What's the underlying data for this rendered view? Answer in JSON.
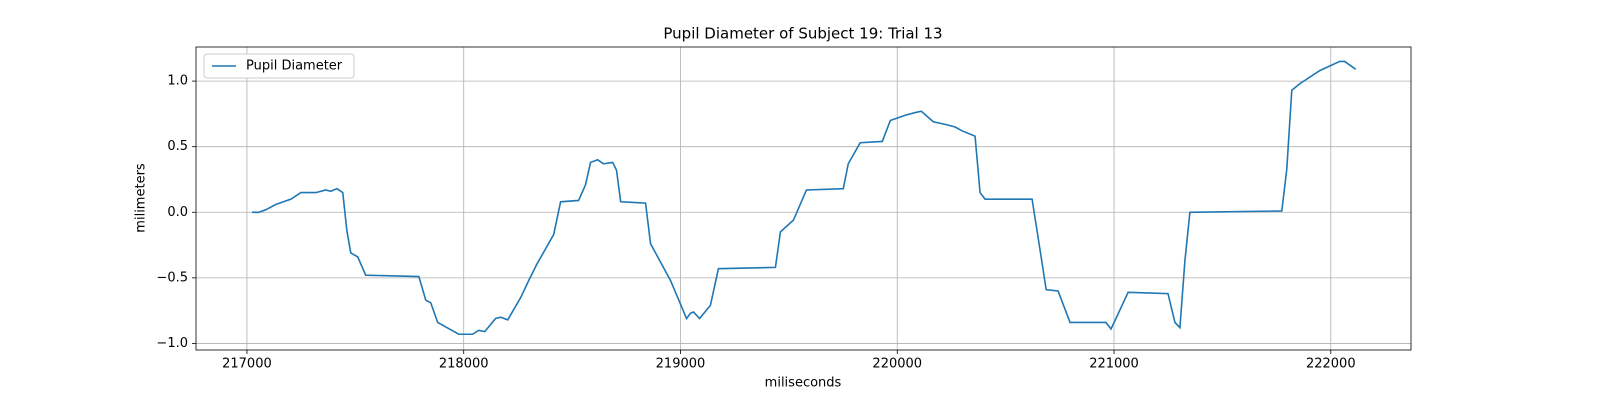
{
  "chart_data": {
    "type": "line",
    "title": "Pupil Diameter of Subject 19: Trial 13",
    "x_label": "miliseconds",
    "y_label": "milimeters",
    "xlim": [
      216765,
      222370
    ],
    "ylim": [
      -1.05,
      1.26
    ],
    "xticks": [
      217000,
      218000,
      219000,
      220000,
      221000,
      222000
    ],
    "yticks": [
      {
        "value": -1.0,
        "label": "−1.0"
      },
      {
        "value": -0.5,
        "label": "−0.5"
      },
      {
        "value": 0.0,
        "label": "0.0"
      },
      {
        "value": 0.5,
        "label": "0.5"
      },
      {
        "value": 1.0,
        "label": "1.0"
      }
    ],
    "grid": true,
    "legend": "upper left",
    "x": [
      217023,
      217055,
      217088,
      217134,
      217203,
      217249,
      217318,
      217364,
      217387,
      217415,
      217442,
      217461,
      217479,
      217511,
      217548,
      217793,
      217825,
      217848,
      217880,
      217977,
      218041,
      218069,
      218097,
      218147,
      218171,
      218203,
      218263,
      218300,
      218336,
      218415,
      218447,
      218530,
      218562,
      218585,
      218618,
      218645,
      218687,
      218705,
      218724,
      218839,
      218862,
      218954,
      219028,
      219046,
      219060,
      219088,
      219138,
      219175,
      219438,
      219461,
      219521,
      219581,
      219751,
      219774,
      219829,
      219931,
      219968,
      220037,
      220083,
      220111,
      220166,
      220221,
      220267,
      220300,
      220359,
      220382,
      220405,
      220622,
      220659,
      220687,
      220742,
      220797,
      220963,
      220986,
      221009,
      221065,
      221249,
      221281,
      221304,
      221327,
      221350,
      221774,
      221797,
      221820,
      221857,
      221949,
      222041,
      222064,
      222115
    ],
    "series": [
      {
        "name": "Pupil Diameter",
        "color": "#1f77b4",
        "values": [
          0.0,
          0.0,
          0.02,
          0.06,
          0.1,
          0.15,
          0.15,
          0.17,
          0.16,
          0.18,
          0.15,
          -0.14,
          -0.31,
          -0.34,
          -0.48,
          -0.49,
          -0.67,
          -0.69,
          -0.84,
          -0.93,
          -0.93,
          -0.9,
          -0.91,
          -0.81,
          -0.8,
          -0.82,
          -0.65,
          -0.52,
          -0.4,
          -0.17,
          0.08,
          0.09,
          0.21,
          0.38,
          0.4,
          0.37,
          0.38,
          0.32,
          0.08,
          0.07,
          -0.24,
          -0.52,
          -0.81,
          -0.77,
          -0.76,
          -0.81,
          -0.71,
          -0.43,
          -0.42,
          -0.15,
          -0.06,
          0.17,
          0.18,
          0.37,
          0.53,
          0.54,
          0.7,
          0.74,
          0.76,
          0.77,
          0.69,
          0.67,
          0.65,
          0.62,
          0.58,
          0.15,
          0.1,
          0.1,
          -0.29,
          -0.59,
          -0.6,
          -0.84,
          -0.84,
          -0.89,
          -0.81,
          -0.61,
          -0.62,
          -0.84,
          -0.88,
          -0.37,
          0.0,
          0.01,
          0.33,
          0.93,
          0.98,
          1.08,
          1.15,
          1.15,
          1.09
        ]
      }
    ]
  }
}
